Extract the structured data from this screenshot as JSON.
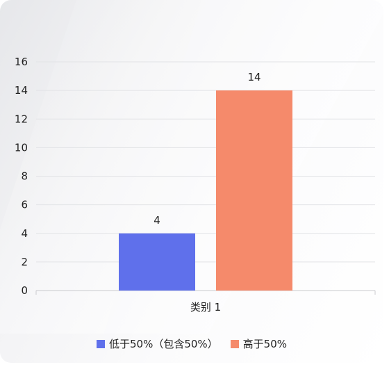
{
  "chart_data": {
    "type": "bar",
    "categories": [
      "类别 1"
    ],
    "series": [
      {
        "name": "低于50%（包含50%）",
        "values": [
          4
        ],
        "color": "#5f70eb"
      },
      {
        "name": "高于50%",
        "values": [
          14
        ],
        "color": "#f58a6b"
      }
    ],
    "ylim": [
      0,
      16
    ],
    "yticks": [
      0,
      2,
      4,
      6,
      8,
      10,
      12,
      14,
      16
    ],
    "grid": true,
    "legend_position": "bottom",
    "data_labels": true
  }
}
